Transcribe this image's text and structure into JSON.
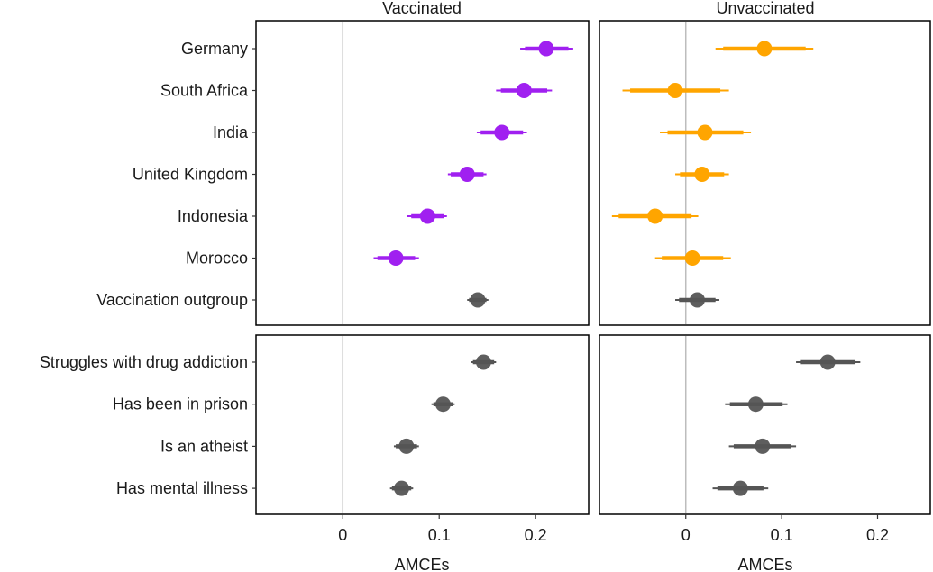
{
  "chart_data": {
    "type": "forest",
    "facet_titles": [
      "Vaccinated",
      "Unvaccinated"
    ],
    "xlabel": "AMCEs",
    "xlim": [
      -0.09,
      0.255
    ],
    "xticks": [
      0,
      0.1,
      0.2
    ],
    "xtick_labels": [
      "0",
      "0.1",
      "0.2"
    ],
    "reference_line": 0,
    "colors": {
      "Vaccinated": "#a020f0",
      "Unvaccinated": "#ffa500",
      "outgroup": "#555555"
    },
    "panels": [
      {
        "name": "top",
        "categories": [
          "Germany",
          "South Africa",
          "India",
          "United Kingdom",
          "Indonesia",
          "Morocco",
          "Vaccination outgroup"
        ],
        "series": [
          {
            "name": "Vaccinated",
            "estimates": [
              0.211,
              0.188,
              0.165,
              0.129,
              0.088,
              0.055,
              0.14
            ],
            "ci95": [
              [
                0.184,
                0.239
              ],
              [
                0.159,
                0.217
              ],
              [
                0.139,
                0.191
              ],
              [
                0.109,
                0.149
              ],
              [
                0.067,
                0.108
              ],
              [
                0.032,
                0.079
              ],
              [
                0.129,
                0.151
              ]
            ],
            "ci90": [
              [
                0.189,
                0.234
              ],
              [
                0.164,
                0.212
              ],
              [
                0.143,
                0.187
              ],
              [
                0.112,
                0.146
              ],
              [
                0.071,
                0.105
              ],
              [
                0.036,
                0.075
              ],
              [
                0.131,
                0.149
              ]
            ],
            "point_colors": [
              "#a020f0",
              "#a020f0",
              "#a020f0",
              "#a020f0",
              "#a020f0",
              "#a020f0",
              "#555555"
            ]
          },
          {
            "name": "Unvaccinated",
            "estimates": [
              0.082,
              -0.011,
              0.02,
              0.017,
              -0.032,
              0.007,
              0.012
            ],
            "ci95": [
              [
                0.031,
                0.133
              ],
              [
                -0.066,
                0.045
              ],
              [
                -0.027,
                0.068
              ],
              [
                -0.011,
                0.045
              ],
              [
                -0.077,
                0.013
              ],
              [
                -0.032,
                0.047
              ],
              [
                -0.011,
                0.035
              ]
            ],
            "ci90": [
              [
                0.039,
                0.125
              ],
              [
                -0.058,
                0.036
              ],
              [
                -0.019,
                0.06
              ],
              [
                -0.006,
                0.04
              ],
              [
                -0.07,
                0.006
              ],
              [
                -0.025,
                0.039
              ],
              [
                -0.007,
                0.031
              ]
            ],
            "point_colors": [
              "#ffa500",
              "#ffa500",
              "#ffa500",
              "#ffa500",
              "#ffa500",
              "#ffa500",
              "#555555"
            ]
          }
        ]
      },
      {
        "name": "bottom",
        "categories": [
          "Struggles with drug addiction",
          "Has been in prison",
          "Is an atheist",
          "Has mental illness"
        ],
        "series": [
          {
            "name": "Vaccinated",
            "estimates": [
              0.146,
              0.104,
              0.066,
              0.061
            ],
            "ci95": [
              [
                0.133,
                0.159
              ],
              [
                0.092,
                0.116
              ],
              [
                0.053,
                0.079
              ],
              [
                0.049,
                0.073
              ]
            ],
            "ci90": [
              [
                0.135,
                0.157
              ],
              [
                0.094,
                0.114
              ],
              [
                0.055,
                0.077
              ],
              [
                0.051,
                0.071
              ]
            ],
            "point_colors": [
              "#555555",
              "#555555",
              "#555555",
              "#555555"
            ]
          },
          {
            "name": "Unvaccinated",
            "estimates": [
              0.148,
              0.073,
              0.08,
              0.057
            ],
            "ci95": [
              [
                0.115,
                0.182
              ],
              [
                0.041,
                0.106
              ],
              [
                0.045,
                0.115
              ],
              [
                0.028,
                0.086
              ]
            ],
            "ci90": [
              [
                0.12,
                0.177
              ],
              [
                0.046,
                0.101
              ],
              [
                0.05,
                0.11
              ],
              [
                0.033,
                0.081
              ]
            ],
            "point_colors": [
              "#555555",
              "#555555",
              "#555555",
              "#555555"
            ]
          }
        ]
      }
    ]
  }
}
